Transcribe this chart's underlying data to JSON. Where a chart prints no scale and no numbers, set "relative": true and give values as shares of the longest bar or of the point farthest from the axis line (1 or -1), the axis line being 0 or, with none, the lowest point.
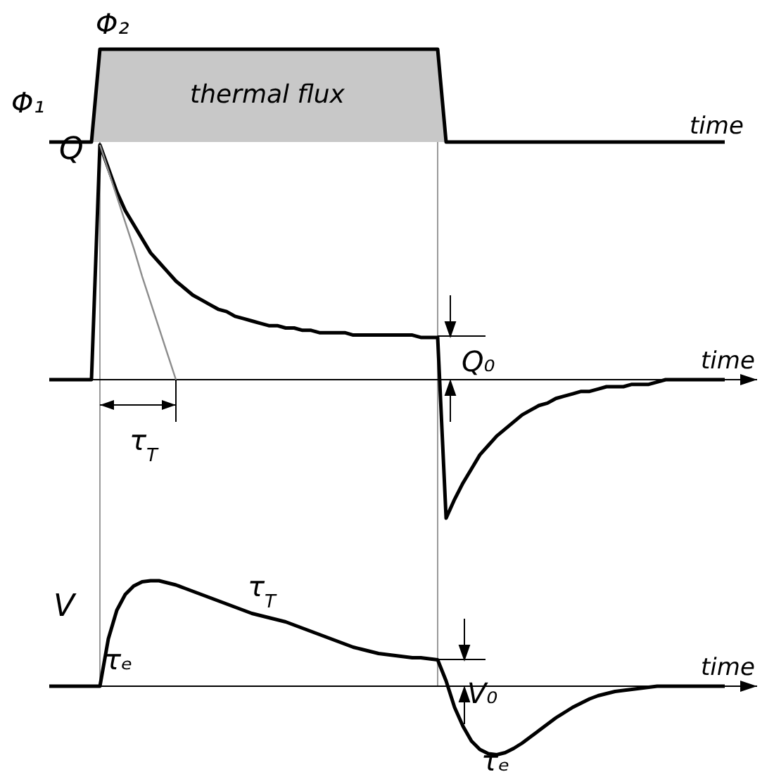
{
  "chart_data": [
    {
      "type": "area",
      "relative": true,
      "xlabel": "time",
      "annotations": [
        "Φ₁",
        "Φ₂",
        "thermal flux"
      ],
      "categories": [
        null,
        null,
        null,
        null,
        null,
        null,
        null,
        null,
        null,
        null,
        null,
        null,
        null,
        null,
        null,
        null,
        null,
        null,
        null,
        null,
        null,
        null,
        null,
        null,
        null,
        null,
        null,
        null,
        null,
        null,
        null,
        null,
        null,
        null,
        null,
        null,
        null,
        null,
        null,
        null,
        null,
        null,
        null,
        null,
        null,
        null,
        null,
        null,
        null,
        null,
        null,
        null,
        null,
        null,
        null,
        null,
        null,
        null,
        null,
        null,
        null,
        null,
        null,
        null,
        null,
        null,
        null,
        null,
        null,
        null,
        null,
        null,
        null,
        null,
        null,
        null,
        null,
        null,
        null,
        null,
        null
      ],
      "series": [
        {
          "color": "#c8c8c8",
          "values": [
            0,
            0,
            0,
            0,
            0,
            0,
            1,
            1,
            1,
            1,
            1,
            1,
            1,
            1,
            1,
            1,
            1,
            1,
            1,
            1,
            1,
            1,
            1,
            1,
            1,
            1,
            1,
            1,
            1,
            1,
            1,
            1,
            1,
            1,
            1,
            1,
            1,
            1,
            1,
            1,
            1,
            1,
            1,
            1,
            1,
            1,
            1,
            0,
            0,
            0,
            0,
            0,
            0,
            0,
            0,
            0,
            0,
            0,
            0,
            0,
            0,
            0,
            0,
            0,
            0,
            0,
            0,
            0,
            0,
            0,
            0,
            0,
            0,
            0,
            0,
            0,
            0,
            0,
            0,
            0,
            0
          ]
        }
      ]
    },
    {
      "type": "line",
      "relative": true,
      "xlabel": "time",
      "annotations": [
        "Q",
        "Q₀",
        "τ$_{T}$"
      ],
      "categories": [
        null,
        null,
        null,
        null,
        null,
        null,
        null,
        null,
        null,
        null,
        null,
        null,
        null,
        null,
        null,
        null,
        null,
        null,
        null,
        null,
        null,
        null,
        null,
        null,
        null,
        null,
        null,
        null,
        null,
        null,
        null,
        null,
        null,
        null,
        null,
        null,
        null,
        null,
        null,
        null,
        null,
        null,
        null,
        null,
        null,
        null,
        null,
        null,
        null,
        null,
        null,
        null,
        null,
        null,
        null,
        null,
        null,
        null,
        null,
        null,
        null,
        null,
        null,
        null,
        null,
        null,
        null,
        null,
        null,
        null,
        null,
        null,
        null,
        null,
        null,
        null,
        null,
        null,
        null,
        null,
        null
      ],
      "series": [
        {
          "color": "#000000",
          "values": [
            0,
            0,
            0,
            0,
            0,
            0,
            1,
            0.9,
            0.8,
            0.72,
            0.66,
            0.6,
            0.54,
            0.5,
            0.46,
            0.42,
            0.39,
            0.36,
            0.34,
            0.32,
            0.3,
            0.29,
            0.27,
            0.26,
            0.25,
            0.24,
            0.23,
            0.23,
            0.22,
            0.22,
            0.21,
            0.21,
            0.2,
            0.2,
            0.2,
            0.2,
            0.19,
            0.19,
            0.19,
            0.19,
            0.19,
            0.19,
            0.19,
            0.19,
            0.18,
            0.18,
            0.18,
            -0.59,
            -0.51,
            -0.44,
            -0.38,
            -0.32,
            -0.28,
            -0.24,
            -0.21,
            -0.18,
            -0.15,
            -0.13,
            -0.11,
            -0.1,
            -0.08,
            -0.07,
            -0.06,
            -0.05,
            -0.05,
            -0.04,
            -0.03,
            -0.03,
            -0.03,
            -0.02,
            -0.02,
            -0.02,
            -0.01,
            0,
            0,
            0,
            0,
            0,
            0,
            0,
            0
          ]
        },
        {
          "color": "#8c8c8c",
          "values": [
            null,
            null,
            null,
            null,
            null,
            null,
            1,
            0.89,
            0.78,
            0.67,
            0.56,
            0.44,
            0.33,
            0.22,
            0.11,
            0,
            null,
            null,
            null,
            null,
            null,
            null,
            null,
            null,
            null,
            null,
            null,
            null,
            null,
            null,
            null,
            null,
            null,
            null,
            null,
            null,
            null,
            null,
            null,
            null,
            null,
            null,
            null,
            null,
            null,
            null,
            null,
            null,
            null,
            null,
            null,
            null,
            null,
            null,
            null,
            null,
            null,
            null,
            null,
            null,
            null,
            null,
            null,
            null,
            null,
            null,
            null,
            null,
            null,
            null,
            null,
            null,
            null,
            null,
            null,
            null,
            null,
            null,
            null,
            null,
            null
          ]
        }
      ]
    },
    {
      "type": "line",
      "relative": true,
      "xlabel": "time",
      "annotations": [
        "V",
        "V₀",
        "τₑ",
        "τ$_{T}$",
        "τₑ"
      ],
      "categories": [
        null,
        null,
        null,
        null,
        null,
        null,
        null,
        null,
        null,
        null,
        null,
        null,
        null,
        null,
        null,
        null,
        null,
        null,
        null,
        null,
        null,
        null,
        null,
        null,
        null,
        null,
        null,
        null,
        null,
        null,
        null,
        null,
        null,
        null,
        null,
        null,
        null,
        null,
        null,
        null,
        null,
        null,
        null,
        null,
        null,
        null,
        null,
        null,
        null,
        null,
        null,
        null,
        null,
        null,
        null,
        null,
        null,
        null,
        null,
        null,
        null,
        null,
        null,
        null,
        null,
        null,
        null,
        null,
        null,
        null,
        null,
        null,
        null,
        null,
        null,
        null,
        null,
        null,
        null,
        null,
        null
      ],
      "series": [
        {
          "color": "#000000",
          "values": [
            0,
            0,
            0,
            0,
            0,
            0,
            0,
            0.45,
            0.72,
            0.87,
            0.95,
            0.99,
            1,
            1,
            0.98,
            0.96,
            0.93,
            0.9,
            0.87,
            0.84,
            0.81,
            0.78,
            0.75,
            0.72,
            0.69,
            0.67,
            0.65,
            0.63,
            0.61,
            0.58,
            0.55,
            0.52,
            0.49,
            0.46,
            0.43,
            0.4,
            0.37,
            0.35,
            0.33,
            0.31,
            0.3,
            0.29,
            0.28,
            0.27,
            0.27,
            0.26,
            0.25,
            0.05,
            -0.2,
            -0.38,
            -0.52,
            -0.6,
            -0.64,
            -0.65,
            -0.63,
            -0.59,
            -0.54,
            -0.48,
            -0.42,
            -0.36,
            -0.3,
            -0.25,
            -0.2,
            -0.16,
            -0.12,
            -0.09,
            -0.07,
            -0.05,
            -0.04,
            -0.03,
            -0.02,
            -0.01,
            0,
            0,
            0,
            0,
            0,
            0,
            0,
            0,
            0
          ]
        }
      ]
    }
  ]
}
